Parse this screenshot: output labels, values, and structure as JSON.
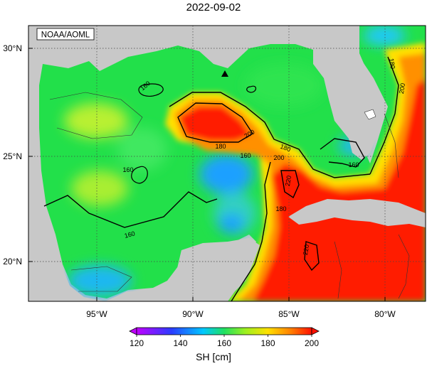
{
  "title": "2022-09-02",
  "credit": "NOAA/AOML",
  "lat_labels": [
    "30°N",
    "25°N",
    "20°N"
  ],
  "lon_labels": [
    "95°W",
    "90°W",
    "85°W",
    "80°W"
  ],
  "contour_labels": [
    "160",
    "160",
    "160",
    "160",
    "160",
    "180",
    "180",
    "180",
    "180",
    "200",
    "200",
    "200",
    "220",
    "220"
  ],
  "colorbar": {
    "label": "SH [cm]",
    "ticks": [
      "120",
      "140",
      "160",
      "180",
      "200"
    ],
    "min": 120,
    "max": 200
  },
  "colors": {
    "land": "#c8c8c8",
    "cold": "#a000ff",
    "blue": "#3a78ff",
    "green": "#22e04a",
    "yellow": "#ffe000",
    "red": "#ff1a00"
  }
}
